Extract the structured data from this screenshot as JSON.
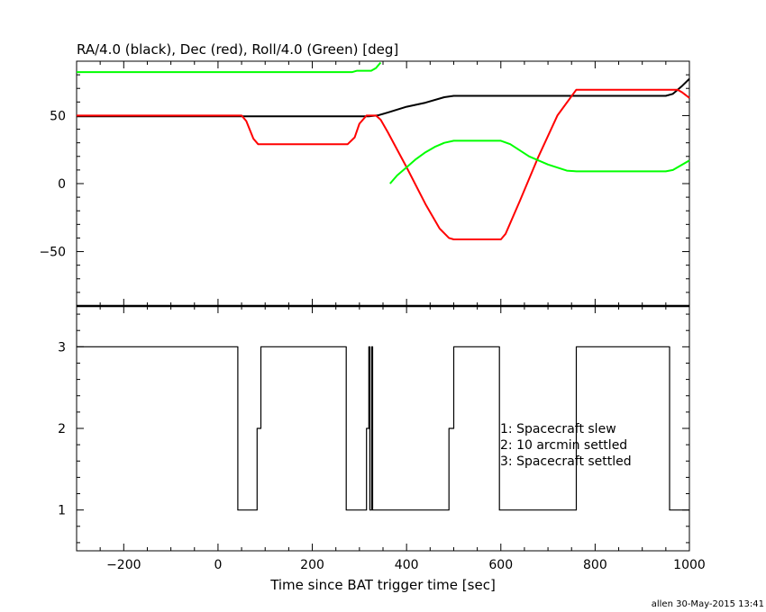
{
  "chart_data": [
    {
      "type": "line",
      "title": "RA/4.0 (black), Dec (red), Roll/4.0 (Green) [deg]",
      "xlim": [
        -300,
        1000
      ],
      "ylim": [
        -90,
        90
      ],
      "y_ticks": [
        -50,
        0,
        50
      ],
      "series": [
        {
          "color": "#000000",
          "points": [
            [
              -300,
              49.5
            ],
            [
              320,
              49.5
            ],
            [
              340,
              50.2
            ],
            [
              360,
              52.2
            ],
            [
              400,
              56.5
            ],
            [
              440,
              59.5
            ],
            [
              480,
              63.5
            ],
            [
              500,
              64.5
            ],
            [
              600,
              64.5
            ],
            [
              800,
              64.5
            ],
            [
              950,
              64.5
            ],
            [
              965,
              66
            ],
            [
              985,
              72
            ],
            [
              1000,
              77
            ]
          ]
        },
        {
          "color": "#ff0000",
          "points": [
            [
              -300,
              50
            ],
            [
              50,
              50
            ],
            [
              60,
              46
            ],
            [
              75,
              33
            ],
            [
              85,
              29
            ],
            [
              275,
              29
            ],
            [
              290,
              34
            ],
            [
              300,
              44
            ],
            [
              315,
              50
            ],
            [
              335,
              50
            ],
            [
              345,
              47
            ],
            [
              360,
              38
            ],
            [
              400,
              12
            ],
            [
              440,
              -15
            ],
            [
              470,
              -33
            ],
            [
              490,
              -40
            ],
            [
              500,
              -41
            ],
            [
              600,
              -41
            ],
            [
              610,
              -37
            ],
            [
              640,
              -13
            ],
            [
              680,
              20
            ],
            [
              720,
              50
            ],
            [
              760,
              69
            ],
            [
              800,
              69
            ],
            [
              960,
              69
            ],
            [
              975,
              69
            ],
            [
              985,
              67
            ],
            [
              1000,
              63
            ]
          ]
        },
        {
          "color": "#00ff00",
          "points": [
            [
              -300,
              82
            ],
            [
              70,
              82
            ],
            [
              285,
              82
            ],
            [
              295,
              83
            ],
            [
              325,
              83
            ],
            [
              335,
              85
            ],
            [
              340,
              87
            ],
            [
              345,
              89
            ]
          ]
        },
        {
          "color": "#00ff00",
          "points": [
            [
              365,
              0
            ],
            [
              380,
              6
            ],
            [
              400,
              12
            ],
            [
              420,
              18
            ],
            [
              440,
              23
            ],
            [
              460,
              27
            ],
            [
              480,
              30
            ],
            [
              500,
              31.5
            ],
            [
              600,
              31.5
            ],
            [
              620,
              29
            ],
            [
              660,
              20
            ],
            [
              700,
              14
            ],
            [
              740,
              9.5
            ],
            [
              760,
              9
            ],
            [
              800,
              9
            ],
            [
              950,
              9
            ],
            [
              965,
              10
            ],
            [
              980,
              13
            ],
            [
              1000,
              17
            ]
          ]
        }
      ]
    },
    {
      "type": "line",
      "xlabel": "Time since BAT trigger time [sec]",
      "xlim": [
        -300,
        1000
      ],
      "ylim": [
        0.5,
        3.5
      ],
      "x_ticks": [
        -200,
        0,
        200,
        400,
        600,
        800,
        1000
      ],
      "y_ticks": [
        1,
        2,
        3
      ],
      "legend": [
        "1: Spacecraft slew",
        "2: 10 arcmin settled",
        "3: Spacecraft settled"
      ],
      "series": [
        {
          "color": "#000000",
          "step": true,
          "points": [
            [
              -300,
              3
            ],
            [
              42,
              3
            ],
            [
              42,
              1
            ],
            [
              83,
              1
            ],
            [
              83,
              2
            ],
            [
              91,
              2
            ],
            [
              91,
              3
            ],
            [
              272,
              3
            ],
            [
              272,
              1
            ],
            [
              315,
              1
            ],
            [
              315,
              2
            ],
            [
              320,
              2
            ],
            [
              320,
              3
            ],
            [
              322,
              3
            ],
            [
              322,
              1
            ],
            [
              326,
              1
            ],
            [
              326,
              3
            ],
            [
              328,
              3
            ],
            [
              328,
              1
            ],
            [
              490,
              1
            ],
            [
              490,
              2
            ],
            [
              500,
              2
            ],
            [
              500,
              3
            ],
            [
              597,
              3
            ],
            [
              597,
              1
            ],
            [
              760,
              1
            ],
            [
              760,
              3
            ],
            [
              958,
              3
            ],
            [
              958,
              1
            ],
            [
              1000,
              1
            ]
          ]
        }
      ]
    }
  ],
  "footer": {
    "credit": "allen 30-May-2015 13:41"
  }
}
